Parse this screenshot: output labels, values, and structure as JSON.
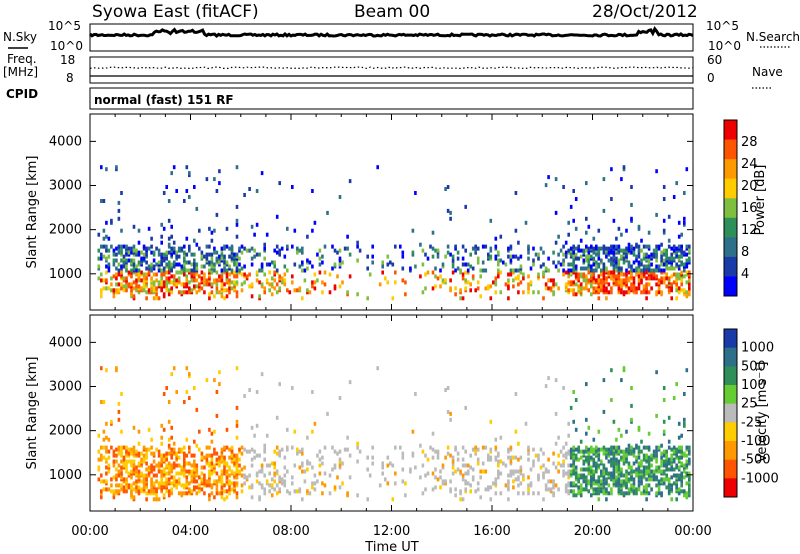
{
  "header": {
    "station": "Syowa East (fitACF)",
    "beam": "Beam 00",
    "date": "28/Oct/2012"
  },
  "strip_labels": {
    "nsky": "N.Sky",
    "freq": "Freq.",
    "freq_unit": "[MHz]",
    "cpid": "CPID",
    "nsearch": "N.Search",
    "nave": "Nave",
    "noise_top": "10^5",
    "noise_bottom": "10^0",
    "freq_top": "18",
    "freq_bottom": "8",
    "nave_top": "60",
    "nave_bottom": "0",
    "cpid_text": "normal (fast) 151 RF"
  },
  "colors": {
    "power": [
      "#0000ff",
      "#1a3aa8",
      "#2e6f8a",
      "#2f8f5a",
      "#7fbf3f",
      "#ffcc00",
      "#ff9900",
      "#ff5500",
      "#ee0000"
    ],
    "velocity": [
      "#ee0000",
      "#ff5500",
      "#ff9900",
      "#ffcc00",
      "#bbbbbb",
      "#66cc33",
      "#2f8f5a",
      "#2e6f8a",
      "#1a3aa8"
    ]
  },
  "chart_data": [
    {
      "type": "heatmap",
      "name": "power",
      "ylabel": "Slant Range [km]",
      "ylim": [
        180,
        4620
      ],
      "yticks": [
        "1000",
        "2000",
        "3000",
        "4000"
      ],
      "xlim": [
        0,
        24
      ],
      "colorbar": {
        "label": "Power [dB]",
        "range": [
          0,
          32
        ],
        "ticks": [
          "4",
          "8",
          "12",
          "16",
          "20",
          "24",
          "28"
        ]
      }
    },
    {
      "type": "heatmap",
      "name": "velocity",
      "ylabel": "Slant Range [km]",
      "ylim": [
        180,
        4620
      ],
      "yticks": [
        "1000",
        "2000",
        "3000",
        "4000"
      ],
      "xlim": [
        0,
        24
      ],
      "xlabel": "Time UT",
      "xticks": [
        "00:00",
        "04:00",
        "08:00",
        "12:00",
        "16:00",
        "20:00",
        "00:00"
      ],
      "colorbar": {
        "label": "Velocity [m s⁻¹]",
        "ticks": [
          "1000",
          "500",
          "100",
          "25",
          "-25",
          "-100",
          "-500",
          "-1000"
        ]
      }
    }
  ]
}
